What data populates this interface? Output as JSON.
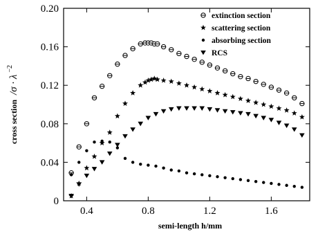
{
  "chart_data": {
    "type": "scatter",
    "title": "",
    "xlabel": "semi-length  h/mm",
    "ylabel_prefix": "cross section",
    "ylabel_unit": "/σ · λ",
    "ylabel_unit_exp": "−2",
    "xlim": [
      0.25,
      1.85
    ],
    "ylim": [
      0,
      0.2
    ],
    "xticks": [
      0.4,
      0.8,
      1.2,
      1.6
    ],
    "xtick_labels": [
      "0.4",
      "0.8",
      "1.2",
      "1.6"
    ],
    "yticks": [
      0,
      0.04,
      0.08,
      0.12,
      0.16,
      0.2
    ],
    "ytick_labels": [
      "0",
      "0.04",
      "0.08",
      "0.12",
      "0.16",
      "0.20"
    ],
    "grid": false,
    "legend_position": "top-right",
    "series": [
      {
        "name": "extinction section",
        "marker": "circle-open-bar",
        "x": [
          0.3,
          0.35,
          0.4,
          0.45,
          0.5,
          0.55,
          0.6,
          0.65,
          0.7,
          0.75,
          0.78,
          0.8,
          0.82,
          0.84,
          0.86,
          0.9,
          0.95,
          1.0,
          1.05,
          1.1,
          1.15,
          1.2,
          1.25,
          1.3,
          1.35,
          1.4,
          1.45,
          1.5,
          1.55,
          1.6,
          1.65,
          1.7,
          1.75,
          1.8
        ],
        "y": [
          0.029,
          0.056,
          0.08,
          0.107,
          0.119,
          0.13,
          0.142,
          0.151,
          0.158,
          0.163,
          0.164,
          0.164,
          0.164,
          0.163,
          0.163,
          0.16,
          0.157,
          0.153,
          0.15,
          0.147,
          0.144,
          0.141,
          0.138,
          0.135,
          0.132,
          0.129,
          0.127,
          0.124,
          0.121,
          0.118,
          0.115,
          0.112,
          0.107,
          0.101
        ]
      },
      {
        "name": "scattering section",
        "marker": "star",
        "x": [
          0.3,
          0.35,
          0.4,
          0.45,
          0.5,
          0.55,
          0.6,
          0.65,
          0.7,
          0.75,
          0.78,
          0.8,
          0.82,
          0.84,
          0.86,
          0.9,
          0.95,
          1.0,
          1.05,
          1.1,
          1.15,
          1.2,
          1.25,
          1.3,
          1.35,
          1.4,
          1.45,
          1.5,
          1.55,
          1.6,
          1.65,
          1.7,
          1.75,
          1.8
        ],
        "y": [
          0.005,
          0.018,
          0.034,
          0.046,
          0.06,
          0.071,
          0.088,
          0.101,
          0.112,
          0.12,
          0.123,
          0.125,
          0.126,
          0.127,
          0.126,
          0.125,
          0.124,
          0.122,
          0.12,
          0.118,
          0.116,
          0.114,
          0.112,
          0.11,
          0.108,
          0.106,
          0.104,
          0.102,
          0.1,
          0.098,
          0.096,
          0.094,
          0.091,
          0.087
        ]
      },
      {
        "name": "absorbing section",
        "marker": "dot",
        "x": [
          0.3,
          0.35,
          0.4,
          0.45,
          0.5,
          0.55,
          0.6,
          0.65,
          0.7,
          0.75,
          0.8,
          0.85,
          0.9,
          0.95,
          1.0,
          1.05,
          1.1,
          1.15,
          1.2,
          1.25,
          1.3,
          1.35,
          1.4,
          1.45,
          1.5,
          1.55,
          1.6,
          1.65,
          1.7,
          1.75,
          1.8
        ],
        "y": [
          0.027,
          0.04,
          0.052,
          0.061,
          0.062,
          0.061,
          0.055,
          0.044,
          0.04,
          0.038,
          0.037,
          0.036,
          0.034,
          0.032,
          0.031,
          0.029,
          0.028,
          0.027,
          0.026,
          0.025,
          0.024,
          0.023,
          0.022,
          0.021,
          0.02,
          0.019,
          0.018,
          0.017,
          0.016,
          0.015,
          0.014
        ]
      },
      {
        "name": "RCS",
        "marker": "triangle-down",
        "x": [
          0.3,
          0.35,
          0.4,
          0.45,
          0.5,
          0.55,
          0.6,
          0.65,
          0.7,
          0.75,
          0.8,
          0.85,
          0.9,
          0.95,
          1.0,
          1.05,
          1.1,
          1.15,
          1.2,
          1.25,
          1.3,
          1.35,
          1.4,
          1.45,
          1.5,
          1.55,
          1.6,
          1.65,
          1.7,
          1.75,
          1.8
        ],
        "y": [
          0.005,
          0.017,
          0.026,
          0.033,
          0.04,
          0.049,
          0.058,
          0.067,
          0.074,
          0.08,
          0.086,
          0.09,
          0.093,
          0.095,
          0.096,
          0.096,
          0.096,
          0.096,
          0.095,
          0.094,
          0.093,
          0.092,
          0.091,
          0.09,
          0.088,
          0.086,
          0.084,
          0.081,
          0.078,
          0.074,
          0.068
        ]
      }
    ]
  }
}
